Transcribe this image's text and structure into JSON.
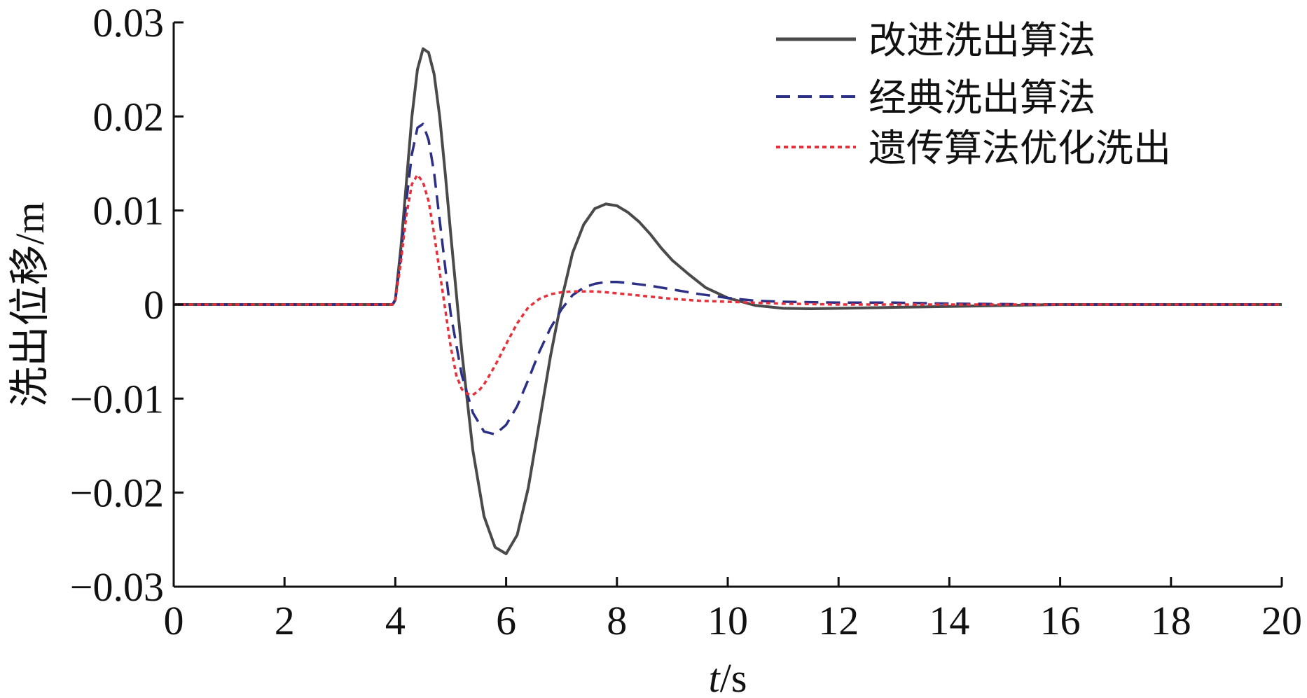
{
  "chart_data": {
    "type": "line",
    "xlabel_italic": "t",
    "xlabel_rest": "/s",
    "ylabel": "洗出位移/m",
    "xlim": [
      0,
      20
    ],
    "ylim": [
      -0.03,
      0.03
    ],
    "xticks": [
      0,
      2,
      4,
      6,
      8,
      10,
      12,
      14,
      16,
      18,
      20
    ],
    "xtick_labels": [
      "0",
      "2",
      "4",
      "6",
      "8",
      "10",
      "12",
      "14",
      "16",
      "18",
      "20"
    ],
    "yticks": [
      0.03,
      0.02,
      0.01,
      0,
      -0.01,
      -0.02,
      -0.03
    ],
    "ytick_labels": [
      "0.03",
      "0.02",
      "0.01",
      "0",
      "−0.01",
      "−0.02",
      "−0.03"
    ],
    "grid": false,
    "legend_position": "top-right",
    "series": [
      {
        "name": "改进洗出算法",
        "color": "#4a4a4a",
        "dash": "solid",
        "x": [
          0,
          3.95,
          4.0,
          4.1,
          4.2,
          4.3,
          4.4,
          4.5,
          4.6,
          4.7,
          4.8,
          4.9,
          5.0,
          5.2,
          5.4,
          5.6,
          5.8,
          6.0,
          6.2,
          6.4,
          6.6,
          6.8,
          7.0,
          7.2,
          7.4,
          7.6,
          7.8,
          8.0,
          8.2,
          8.4,
          8.6,
          8.8,
          9.0,
          9.3,
          9.6,
          10.0,
          10.5,
          11.0,
          11.5,
          12.0,
          13.0,
          14.0,
          15.0,
          16.0,
          18.0,
          20.0
        ],
        "y": [
          0,
          0,
          0.0005,
          0.006,
          0.013,
          0.02,
          0.025,
          0.0272,
          0.0268,
          0.0245,
          0.02,
          0.014,
          0.0075,
          -0.005,
          -0.0155,
          -0.0225,
          -0.0258,
          -0.0265,
          -0.0245,
          -0.0195,
          -0.0125,
          -0.0055,
          0.0005,
          0.0055,
          0.0085,
          0.0102,
          0.0107,
          0.0105,
          0.0098,
          0.0088,
          0.0075,
          0.006,
          0.0047,
          0.0032,
          0.0018,
          0.0007,
          -0.0001,
          -0.0004,
          -0.00045,
          -0.0004,
          -0.0003,
          -0.0002,
          -0.0001,
          0,
          0,
          0
        ]
      },
      {
        "name": "经典洗出算法",
        "color": "#2b2f86",
        "dash": "dashed",
        "x": [
          0,
          3.95,
          4.0,
          4.1,
          4.2,
          4.3,
          4.4,
          4.5,
          4.6,
          4.7,
          4.8,
          4.9,
          5.0,
          5.2,
          5.4,
          5.6,
          5.8,
          6.0,
          6.2,
          6.4,
          6.6,
          6.8,
          7.0,
          7.2,
          7.4,
          7.6,
          7.8,
          8.0,
          8.2,
          8.6,
          9.0,
          9.5,
          10.0,
          10.5,
          11.0,
          12.0,
          13.0,
          14.0,
          16.0,
          18.0,
          20.0
        ],
        "y": [
          0,
          0,
          0.0005,
          0.005,
          0.011,
          0.016,
          0.0188,
          0.0192,
          0.0175,
          0.014,
          0.009,
          0.004,
          -0.001,
          -0.0075,
          -0.0115,
          -0.0135,
          -0.0138,
          -0.0128,
          -0.0108,
          -0.008,
          -0.005,
          -0.0025,
          -0.0005,
          0.001,
          0.0018,
          0.0022,
          0.0024,
          0.0024,
          0.0023,
          0.002,
          0.0016,
          0.0011,
          0.0007,
          0.0004,
          0.0003,
          0.0002,
          0.0002,
          0.0001,
          0,
          0,
          0
        ]
      },
      {
        "name": "遗传算法优化洗出",
        "color": "#e8303a",
        "dash": "dotted",
        "x": [
          0,
          3.95,
          4.0,
          4.1,
          4.2,
          4.3,
          4.4,
          4.5,
          4.6,
          4.7,
          4.8,
          4.9,
          5.0,
          5.1,
          5.2,
          5.3,
          5.4,
          5.5,
          5.6,
          5.8,
          6.0,
          6.2,
          6.4,
          6.6,
          6.8,
          7.0,
          7.2,
          7.4,
          7.6,
          7.8,
          8.0,
          8.5,
          9.0,
          9.5,
          10.0,
          11.0,
          12.0,
          14.0,
          16.0,
          20.0
        ],
        "y": [
          0,
          0,
          0.0005,
          0.0045,
          0.0095,
          0.0128,
          0.0138,
          0.013,
          0.011,
          0.0075,
          0.0035,
          -0.0005,
          -0.0045,
          -0.0075,
          -0.009,
          -0.0095,
          -0.0096,
          -0.0092,
          -0.0085,
          -0.0065,
          -0.0042,
          -0.002,
          -0.0003,
          0.0006,
          0.0011,
          0.0013,
          0.0014,
          0.0014,
          0.0014,
          0.0013,
          0.0012,
          0.0009,
          0.0006,
          0.0004,
          0.0003,
          0.0001,
          0,
          0,
          0,
          0
        ]
      }
    ]
  }
}
